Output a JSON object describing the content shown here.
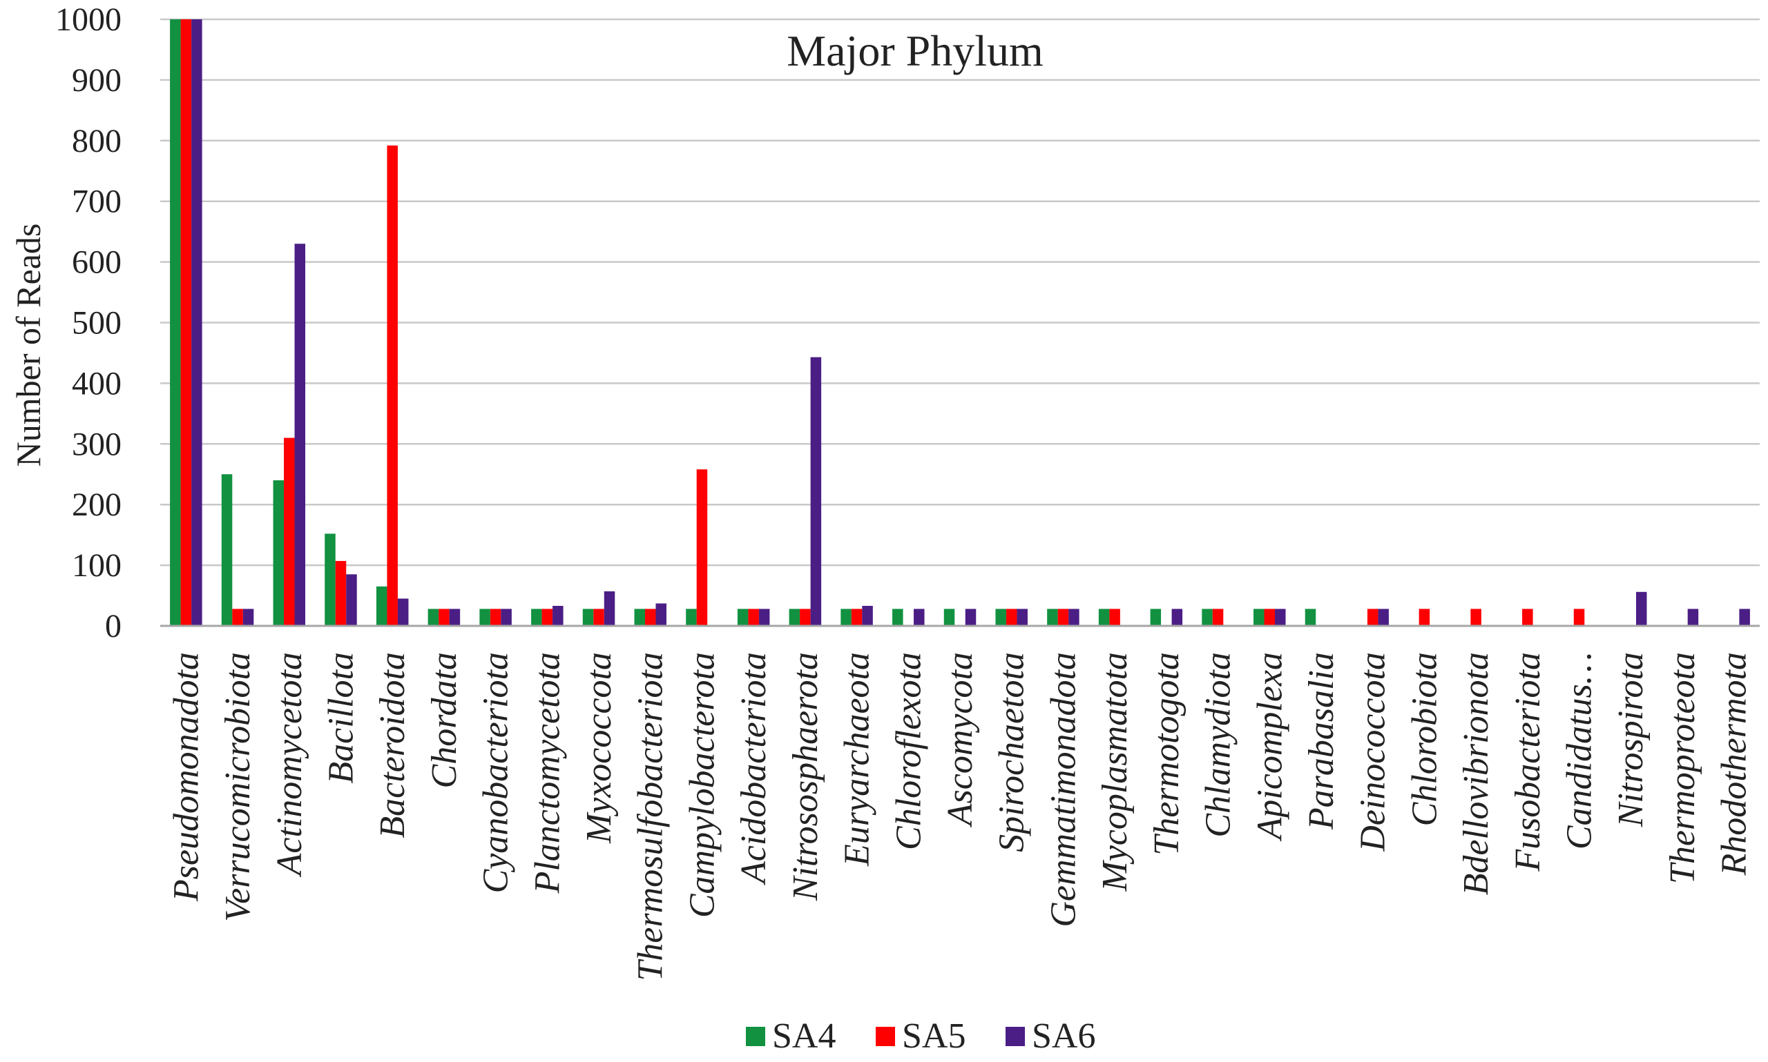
{
  "chart_data": {
    "type": "bar",
    "title": "Major Phylum",
    "ylabel": "Number of Reads",
    "xlabel": "",
    "ylim": [
      0,
      1000
    ],
    "yticks": [
      0,
      100,
      200,
      300,
      400,
      500,
      600,
      700,
      800,
      900,
      1000
    ],
    "grid": true,
    "legend_position": "bottom",
    "categories": [
      "Pseudomonadota",
      "Verrucomicrobiota",
      "Actinomycetota",
      "Bacillota",
      "Bacteroidota",
      "Chordata",
      "Cyanobacteriota",
      "Planctomycetota",
      "Myxococcota",
      "Thermosulfobacteriota",
      "Campylobacterota",
      "Acidobacteriota",
      "Nitrososphaerota",
      "Euryarchaeota",
      "Chloroflexota",
      "Ascomycota",
      "Spirochaetota",
      "Gemmatimonadota",
      "Mycoplasmatota",
      "Thermotogota",
      "Chlamydiota",
      "Apicomplexa",
      "Parabasalia",
      "Deinococcota",
      "Chlorobiota",
      "Bdellovibrionota",
      "Fusobacteriota",
      "Candidatus…",
      "Nitrospirota",
      "Thermoproteota",
      "Rhodothermota"
    ],
    "series": [
      {
        "name": "SA4",
        "color": "#129141",
        "values": [
          1000,
          250,
          240,
          152,
          65,
          28,
          28,
          28,
          28,
          28,
          28,
          28,
          28,
          28,
          28,
          28,
          28,
          28,
          28,
          28,
          28,
          28,
          28,
          0,
          0,
          0,
          0,
          0,
          0,
          0,
          0
        ]
      },
      {
        "name": "SA5",
        "color": "#ff0000",
        "values": [
          1000,
          28,
          310,
          107,
          792,
          28,
          28,
          28,
          28,
          28,
          258,
          28,
          28,
          28,
          0,
          0,
          28,
          28,
          28,
          0,
          28,
          28,
          0,
          28,
          28,
          28,
          28,
          28,
          0,
          0,
          0
        ]
      },
      {
        "name": "SA6",
        "color": "#4b1e85",
        "values": [
          1000,
          28,
          630,
          85,
          45,
          28,
          28,
          33,
          57,
          37,
          0,
          28,
          443,
          33,
          28,
          28,
          28,
          28,
          0,
          28,
          0,
          28,
          0,
          28,
          0,
          0,
          0,
          0,
          56,
          28,
          28
        ]
      }
    ]
  }
}
